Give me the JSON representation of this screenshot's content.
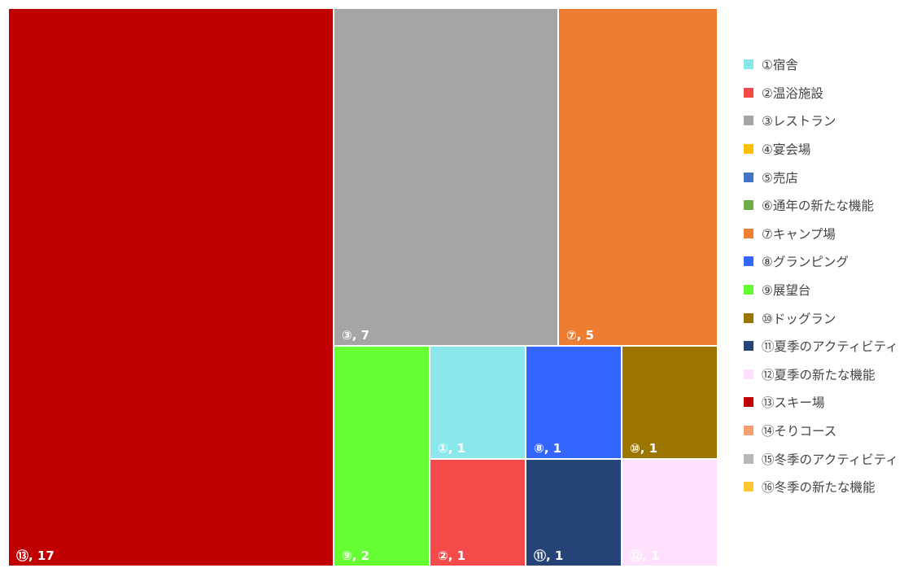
{
  "chart_data": {
    "type": "treemap",
    "series": [
      {
        "label": "①宿舎",
        "value": 1,
        "color": "#8ae8ec"
      },
      {
        "label": "②温浴施設",
        "value": 1,
        "color": "#f44a4a"
      },
      {
        "label": "③レストラン",
        "value": 7,
        "color": "#a5a5a5"
      },
      {
        "label": "④宴会場",
        "value": 0,
        "color": "#ffc000"
      },
      {
        "label": "⑤売店",
        "value": 0,
        "color": "#4472c4"
      },
      {
        "label": "⑥通年の新たな機能",
        "value": 0,
        "color": "#70ad47"
      },
      {
        "label": "⑦キャンプ場",
        "value": 5,
        "color": "#ed7d31"
      },
      {
        "label": "⑧グランピング",
        "value": 1,
        "color": "#3366ff"
      },
      {
        "label": "⑨展望台",
        "value": 2,
        "color": "#66ff33"
      },
      {
        "label": "⑩ドッグラン",
        "value": 1,
        "color": "#9c7500"
      },
      {
        "label": "⑪夏季のアクティビティ",
        "value": 1,
        "color": "#264478"
      },
      {
        "label": "⑫夏季の新たな機能",
        "value": 1,
        "color": "#ffe1fd"
      },
      {
        "label": "⑬スキー場",
        "value": 17,
        "color": "#c00000"
      },
      {
        "label": "⑭そりコース",
        "value": 0,
        "color": "#f4a06e"
      },
      {
        "label": "⑮冬季のアクティビティ",
        "value": 0,
        "color": "#b9b9b9"
      },
      {
        "label": "⑯冬季の新たな機能",
        "value": 0,
        "color": "#ffc833"
      }
    ],
    "tile_labels": [
      {
        "index": 12,
        "text": "⑬, 17"
      },
      {
        "index": 2,
        "text": "③, 7"
      },
      {
        "index": 6,
        "text": "⑦, 5"
      },
      {
        "index": 8,
        "text": "⑨, 2"
      },
      {
        "index": 0,
        "text": "①, 1"
      },
      {
        "index": 7,
        "text": "⑧, 1"
      },
      {
        "index": 9,
        "text": "⑩, 1"
      },
      {
        "index": 1,
        "text": "②, 1"
      },
      {
        "index": 10,
        "text": "⑪, 1"
      },
      {
        "index": 11,
        "text": "⑫, 1"
      }
    ],
    "legend_position": "right"
  }
}
